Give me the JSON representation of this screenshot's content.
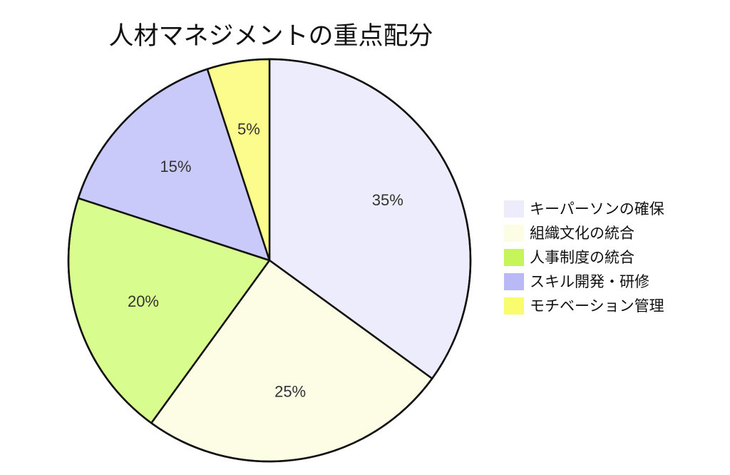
{
  "chart_data": {
    "type": "pie",
    "title": "人材マネジメントの重点配分",
    "categories": [
      "キーパーソンの確保",
      "組織文化の統合",
      "人事制度の統合",
      "スキル開発・研修",
      "モチベーション管理"
    ],
    "values": [
      35,
      25,
      20,
      15,
      5
    ],
    "value_labels": [
      "35%",
      "25%",
      "20%",
      "15%",
      "5%"
    ],
    "colors": [
      "#ececfc",
      "#fdfde6",
      "#d9fc8f",
      "#cacafa",
      "#fcfc8c"
    ],
    "legend_colors": [
      "#ececfc",
      "#fdfde6",
      "#c6f55a",
      "#b9b9f7",
      "#fbfb6e"
    ],
    "start_angle": "12 o'clock",
    "direction": "clockwise",
    "legend_position": "right"
  }
}
